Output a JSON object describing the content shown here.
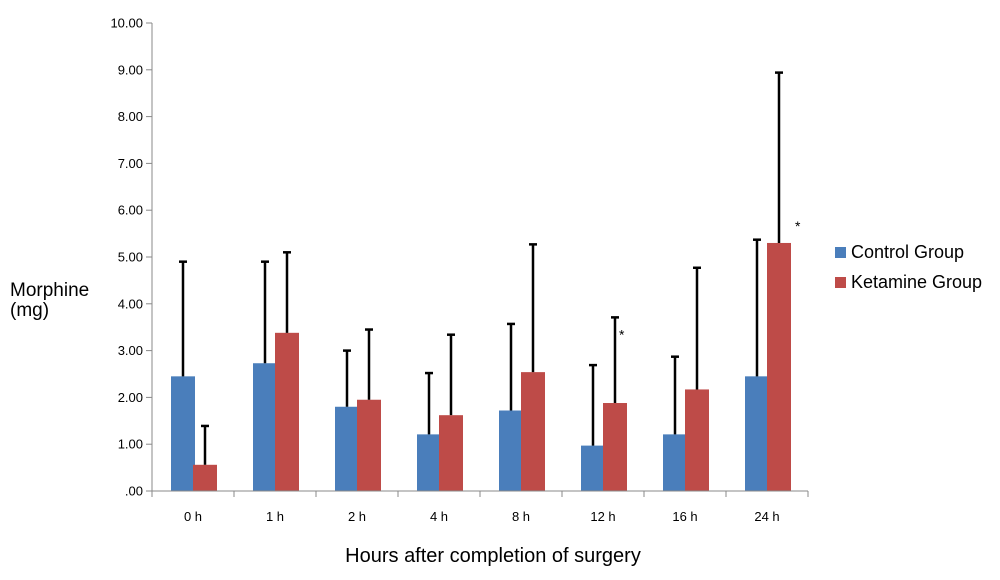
{
  "chart_data": {
    "type": "bar",
    "categories": [
      "0 h",
      "1 h",
      "2 h",
      "4 h",
      "8 h",
      "12 h",
      "16 h",
      "24 h"
    ],
    "series": [
      {
        "name": "Control Group",
        "color": "#4a7ebb",
        "values": [
          2.45,
          2.73,
          1.8,
          1.21,
          1.72,
          0.97,
          1.21,
          2.45
        ],
        "error_upper": [
          4.9,
          4.9,
          3.0,
          2.52,
          3.57,
          2.69,
          2.87,
          5.37
        ]
      },
      {
        "name": "Ketamine Group",
        "color": "#be4b48",
        "values": [
          0.56,
          3.38,
          1.95,
          1.62,
          2.54,
          1.88,
          2.17,
          5.3
        ],
        "error_upper": [
          1.39,
          5.1,
          3.45,
          3.34,
          5.27,
          3.71,
          4.77,
          8.94
        ]
      }
    ],
    "significance": [
      {
        "category": "12 h",
        "series": "Ketamine Group",
        "label": "*"
      },
      {
        "category": "24 h",
        "series": "Ketamine Group",
        "label": "*"
      }
    ],
    "ylabel_line1": "Morphine",
    "ylabel_line2": "(mg)",
    "xlabel": "Hours after completion of surgery",
    "ylim": [
      0,
      10
    ],
    "yticks": [
      0,
      1,
      2,
      3,
      4,
      5,
      6,
      7,
      8,
      9,
      10
    ],
    "ytick_labels": [
      ".00",
      "1.00",
      "2.00",
      "3.00",
      "4.00",
      "5.00",
      "6.00",
      "7.00",
      "8.00",
      "9.00",
      "10.00"
    ],
    "grid": false,
    "legend_position": "right"
  }
}
